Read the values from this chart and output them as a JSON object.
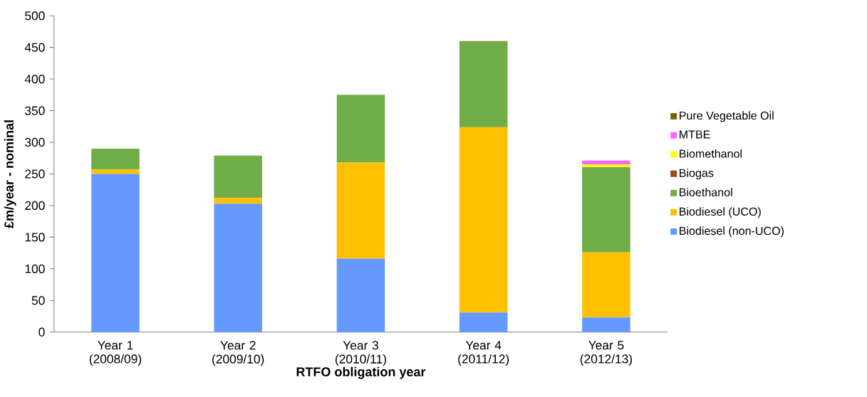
{
  "chart_data": {
    "type": "bar",
    "stacked": true,
    "xlabel": "RTFO obligation year",
    "ylabel": "£m/year - nominal",
    "categories": [
      "Year 1 (2008/09)",
      "Year 2 (2009/10)",
      "Year 3 (2010/11)",
      "Year 4 (2011/12)",
      "Year 5 (2012/13)"
    ],
    "series": [
      {
        "name": "Biodiesel (non-UCO)",
        "color": "#6699ff",
        "values": [
          250,
          203,
          116,
          31,
          23
        ]
      },
      {
        "name": "Biodiesel (UCO)",
        "color": "#ffc000",
        "values": [
          7,
          9,
          152,
          293,
          103
        ]
      },
      {
        "name": "Bioethanol",
        "color": "#70ad47",
        "values": [
          33,
          67,
          107,
          135,
          135
        ]
      },
      {
        "name": "Biogas",
        "color": "#9c4a13",
        "values": [
          0,
          0,
          0,
          0,
          0
        ]
      },
      {
        "name": "Biomethanol",
        "color": "#ffff00",
        "values": [
          0,
          0,
          0,
          0,
          4
        ]
      },
      {
        "name": "MTBE",
        "color": "#ff66ff",
        "values": [
          0,
          0,
          0,
          0,
          6
        ]
      },
      {
        "name": "Pure Vegetable Oil",
        "color": "#7f6000",
        "values": [
          0,
          0,
          0,
          1,
          0
        ]
      }
    ],
    "ylim": [
      0,
      500
    ],
    "yticks": [
      0,
      50,
      100,
      150,
      200,
      250,
      300,
      350,
      400,
      450,
      500
    ],
    "grid": false,
    "legend": "right"
  }
}
